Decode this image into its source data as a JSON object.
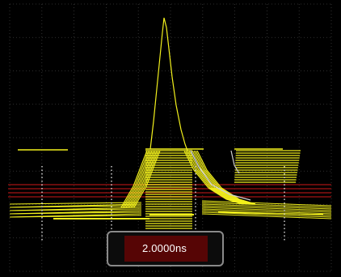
{
  "display": {
    "background_color": "#000000",
    "grid_color": "#3c3c3c",
    "waveform_color": "#f2f01c",
    "secondary_trace_color": "#cfcfcf",
    "reference_band_color": "#8a1010"
  },
  "cursor_readout": {
    "value": "2.0000ns",
    "highlight_color": "#560505",
    "border_color": "#8a8a8a"
  }
}
